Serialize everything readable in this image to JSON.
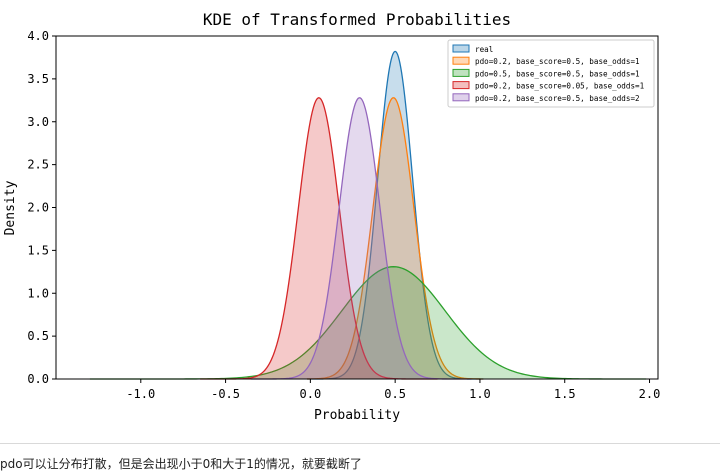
{
  "chart_data": {
    "type": "area",
    "title": "KDE of Transformed Probabilities",
    "xlabel": "Probability",
    "ylabel": "Density",
    "xlim": [
      -1.5,
      2.05
    ],
    "ylim": [
      0,
      4.0
    ],
    "xticks": [
      -1.0,
      -0.5,
      0.0,
      0.5,
      1.0,
      1.5,
      2.0
    ],
    "xtick_labels": [
      "-1.0",
      "-0.5",
      "0.0",
      "0.5",
      "1.0",
      "1.5",
      "2.0"
    ],
    "yticks": [
      0.0,
      0.5,
      1.0,
      1.5,
      2.0,
      2.5,
      3.0,
      3.5,
      4.0
    ],
    "ytick_labels": [
      "0.0",
      "0.5",
      "1.0",
      "1.5",
      "2.0",
      "2.5",
      "3.0",
      "3.5",
      "4.0"
    ],
    "legend_position": "top-right",
    "grid": false,
    "series": [
      {
        "name": "real",
        "color": "#1f77b4",
        "peak_x": 0.5,
        "peak_density": 3.82
      },
      {
        "name": "pdo=0.2, base_score=0.5, base_odds=1",
        "color": "#ff7f0e",
        "peak_x": 0.49,
        "peak_density": 3.28
      },
      {
        "name": "pdo=0.5, base_score=0.5, base_odds=1",
        "color": "#2ca02c",
        "peak_x": 0.49,
        "peak_density": 1.31
      },
      {
        "name": "pdo=0.2, base_score=0.05, base_odds=1",
        "color": "#d62728",
        "peak_x": 0.05,
        "peak_density": 3.28
      },
      {
        "name": "pdo=0.2, base_score=0.5, base_odds=2",
        "color": "#9467bd",
        "peak_x": 0.29,
        "peak_density": 3.28
      }
    ]
  },
  "caption": "pdo可以让分布打散，但是会出现小于0和大于1的情况，就要截断了"
}
